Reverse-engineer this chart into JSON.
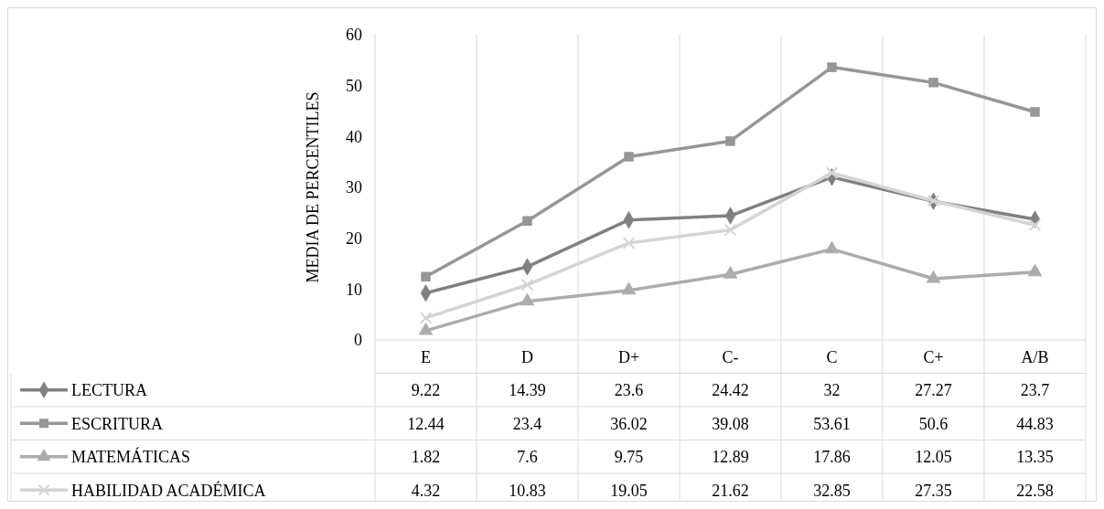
{
  "chart_data": {
    "type": "line",
    "ylabel": "MEDIA DE PERCENTILES",
    "categories": [
      "E",
      "D",
      "D+",
      "C-",
      "C",
      "C+",
      "A/B"
    ],
    "ylim": [
      0,
      60
    ],
    "yticks": [
      0,
      10,
      20,
      30,
      40,
      50,
      60
    ],
    "grid": "x",
    "data_labels": true,
    "legend": "bottom",
    "line_style": "solid",
    "series": [
      {
        "name": "LECTURA",
        "color": "#808080",
        "marker": "diamond",
        "values": [
          9.22,
          14.39,
          23.6,
          24.42,
          32,
          27.27,
          23.7
        ]
      },
      {
        "name": "ESCRITURA",
        "color": "#969696",
        "marker": "square",
        "values": [
          12.44,
          23.4,
          36.02,
          39.08,
          53.61,
          50.6,
          44.83
        ]
      },
      {
        "name": "MATEMÁTICAS",
        "color": "#acacac",
        "marker": "triangle",
        "values": [
          1.82,
          7.6,
          9.75,
          12.89,
          17.86,
          12.05,
          13.35
        ]
      },
      {
        "name": "HABILIDAD ACADÉMICA",
        "color": "#d4d4d4",
        "marker": "cross",
        "values": [
          4.32,
          10.83,
          19.05,
          21.62,
          32.85,
          27.35,
          22.58
        ]
      }
    ]
  }
}
